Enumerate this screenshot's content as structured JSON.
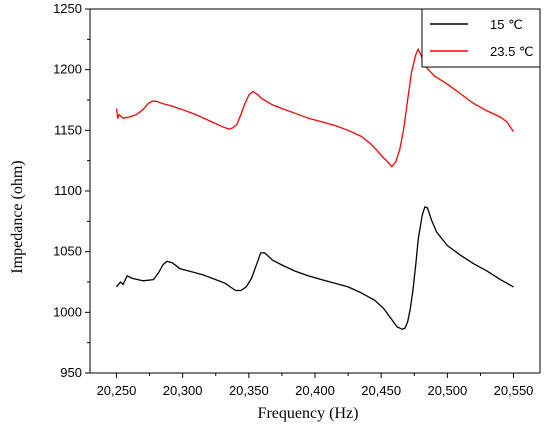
{
  "chart_data": {
    "type": "line",
    "title": "",
    "xlabel": "Frequency (Hz)",
    "ylabel": "Impedance (ohm)",
    "xlim": [
      20230,
      20570
    ],
    "ylim": [
      950,
      1250
    ],
    "x_ticks": [
      20250,
      20300,
      20350,
      20400,
      20450,
      20500,
      20550
    ],
    "x_tick_labels": [
      "20,250",
      "20,300",
      "20,350",
      "20,400",
      "20,450",
      "20,500",
      "20,550"
    ],
    "y_ticks": [
      950,
      1000,
      1050,
      1100,
      1150,
      1200,
      1250
    ],
    "y_tick_labels": [
      "950",
      "1000",
      "1050",
      "1100",
      "1150",
      "1200",
      "1250"
    ],
    "grid": false,
    "legend_position": "top-right",
    "series": [
      {
        "name": "15 ℃",
        "color": "#000000",
        "x": [
          20250,
          20253,
          20255,
          20258,
          20262,
          20270,
          20278,
          20282,
          20285,
          20288,
          20292,
          20298,
          20305,
          20315,
          20325,
          20332,
          20336,
          20340,
          20344,
          20348,
          20352,
          20356,
          20359,
          20362,
          20368,
          20375,
          20385,
          20395,
          20405,
          20415,
          20425,
          20435,
          20445,
          20452,
          20458,
          20462,
          20466,
          20468,
          20470,
          20472,
          20474,
          20476,
          20478,
          20481,
          20483,
          20485,
          20488,
          20492,
          20500,
          20510,
          20520,
          20530,
          20540,
          20550
        ],
        "y": [
          1021,
          1025,
          1023,
          1030,
          1028,
          1026,
          1027,
          1033,
          1039,
          1042,
          1041,
          1036,
          1034,
          1031,
          1027,
          1024,
          1021,
          1018,
          1018,
          1021,
          1028,
          1040,
          1049,
          1049,
          1043,
          1039,
          1034,
          1030,
          1027,
          1024,
          1021,
          1016,
          1010,
          1003,
          994,
          988,
          986,
          987,
          992,
          1003,
          1018,
          1038,
          1060,
          1080,
          1087,
          1086,
          1076,
          1066,
          1055,
          1047,
          1040,
          1034,
          1027,
          1021
        ]
      },
      {
        "name": "23.5 ℃",
        "color": "#ff0000",
        "x": [
          20250,
          20251,
          20252,
          20255,
          20260,
          20265,
          20270,
          20274,
          20277,
          20280,
          20285,
          20292,
          20300,
          20310,
          20320,
          20330,
          20335,
          20338,
          20341,
          20344,
          20347,
          20350,
          20353,
          20356,
          20360,
          20368,
          20375,
          20385,
          20395,
          20405,
          20415,
          20425,
          20435,
          20442,
          20448,
          20452,
          20455,
          20458,
          20461,
          20464,
          20467,
          20470,
          20473,
          20476,
          20478,
          20480,
          20484,
          20490,
          20500,
          20510,
          20520,
          20530,
          20540,
          20545,
          20548,
          20550
        ],
        "y": [
          1168,
          1160,
          1163,
          1160,
          1161,
          1163,
          1167,
          1172,
          1174,
          1174,
          1172,
          1170,
          1167,
          1163,
          1158,
          1153,
          1151,
          1152,
          1155,
          1163,
          1172,
          1179,
          1182,
          1180,
          1176,
          1171,
          1168,
          1164,
          1160,
          1157,
          1154,
          1150,
          1145,
          1139,
          1132,
          1127,
          1124,
          1120,
          1124,
          1134,
          1151,
          1175,
          1198,
          1212,
          1217,
          1212,
          1202,
          1195,
          1188,
          1180,
          1172,
          1166,
          1161,
          1157,
          1152,
          1149
        ]
      }
    ]
  }
}
